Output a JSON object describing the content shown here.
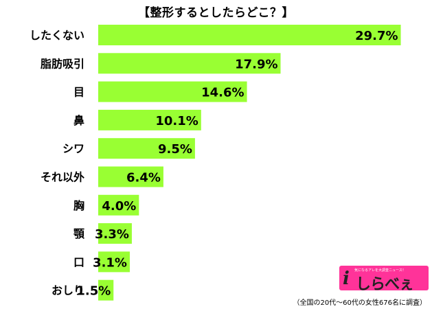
{
  "chart_data": {
    "type": "bar",
    "orientation": "horizontal",
    "title": "【整形するとしたらどこ？】",
    "categories": [
      "したくない",
      "脂肪吸引",
      "目",
      "鼻",
      "シワ",
      "それ以外",
      "胸",
      "顎",
      "口",
      "おしり"
    ],
    "values": [
      29.7,
      17.9,
      14.6,
      10.1,
      9.5,
      6.4,
      4.0,
      3.3,
      3.1,
      1.5
    ],
    "value_labels": [
      "29.7%",
      "17.9%",
      "14.6%",
      "10.1%",
      "9.5%",
      "6.4%",
      "4.0%",
      "3.3%",
      "3.1%",
      "1.5%"
    ],
    "unit": "%",
    "xlim": [
      0,
      30
    ],
    "grid": false,
    "legend": "none",
    "bar_color": "#99ff33"
  },
  "note": "（全国の20代～60代の女性676名に調査）",
  "logo": {
    "text": "しらべぇ",
    "tagline": "気になるアレを大調査ニュース！",
    "color": "#ff3399"
  }
}
